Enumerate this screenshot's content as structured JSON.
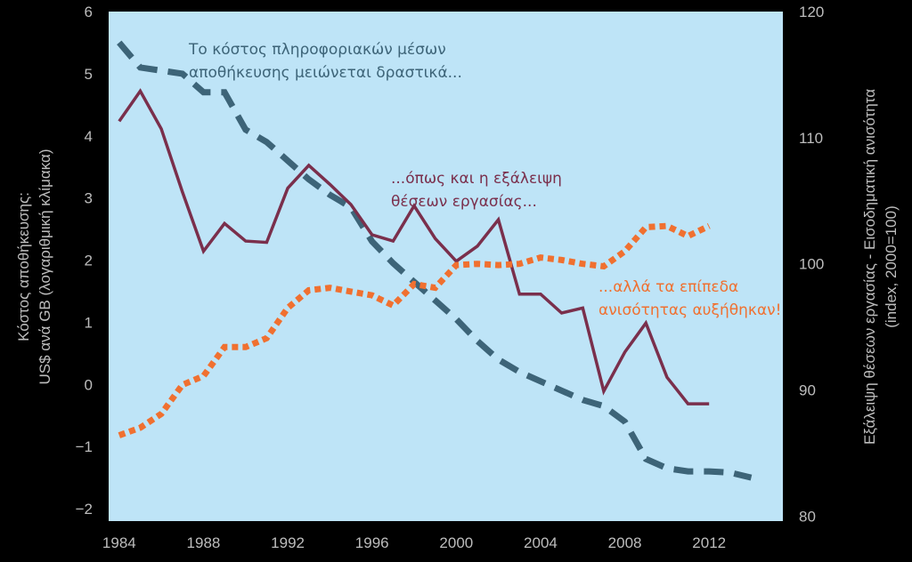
{
  "chart_data": {
    "type": "line",
    "x_ticks": [
      "1984",
      "1988",
      "1992",
      "1996",
      "2000",
      "2004",
      "2008",
      "2012"
    ],
    "xlim": [
      1983.5,
      2015.5
    ],
    "left_axis": {
      "label_lines": [
        "Κόστος αποθήκευσης:",
        "US$ ανά GB (λογαριθμική κλίμακα)"
      ],
      "ylim": [
        -2.2,
        6
      ],
      "ticks": [
        "6",
        "5",
        "4",
        "3",
        "2",
        "1",
        "0",
        "−1",
        "−2"
      ],
      "tick_values": [
        6,
        5,
        4,
        3,
        2,
        1,
        0,
        -1,
        -2
      ]
    },
    "right_axis": {
      "label_lines": [
        "Εξάλειψη θέσεων εργασίας - Εισοδηματική ανισότητα",
        "(index, 2000=100)"
      ],
      "ylim": [
        79.6,
        120
      ],
      "ticks": [
        "120",
        "110",
        "100",
        "90",
        "80"
      ],
      "tick_values": [
        120,
        110,
        100,
        90,
        80
      ]
    },
    "series": [
      {
        "axis": "left",
        "color": "#3d6478",
        "style": "dashed",
        "x": [
          1984,
          1985,
          1986,
          1987,
          1988,
          1989,
          1990,
          1991,
          1992,
          1993,
          1994,
          1995,
          1996,
          1997,
          1998,
          1999,
          2000,
          2001,
          2002,
          2003,
          2004,
          2005,
          2006,
          2007,
          2008,
          2009,
          2010,
          2011,
          2012,
          2013,
          2014
        ],
        "values": [
          5.5,
          5.1,
          5.05,
          5.0,
          4.7,
          4.7,
          4.1,
          3.9,
          3.6,
          3.3,
          3.05,
          2.85,
          2.3,
          1.95,
          1.65,
          1.35,
          1.05,
          0.7,
          0.4,
          0.2,
          0.05,
          -0.1,
          -0.25,
          -0.35,
          -0.6,
          -1.2,
          -1.35,
          -1.4,
          -1.4,
          -1.42,
          -1.5
        ]
      },
      {
        "axis": "right",
        "color": "#7a2f4c",
        "style": "solid",
        "x": [
          1984,
          1985,
          1986,
          1987,
          1988,
          1989,
          1990,
          1991,
          1992,
          1993,
          1994,
          1995,
          1996,
          1997,
          1998,
          1999,
          2000,
          2001,
          2002,
          2003,
          2004,
          2005,
          2006,
          2007,
          2008,
          2009,
          2010,
          2011,
          2012
        ],
        "values": [
          111.3,
          113.7,
          110.7,
          105.7,
          101.0,
          103.2,
          101.8,
          101.7,
          106.0,
          107.8,
          106.3,
          104.7,
          102.3,
          101.8,
          104.6,
          102.0,
          100.2,
          101.4,
          103.5,
          97.6,
          97.6,
          96.1,
          96.5,
          89.9,
          93.0,
          95.3,
          91.0,
          88.9,
          88.9
        ]
      },
      {
        "axis": "right",
        "color": "#f07030",
        "style": "dotted",
        "x": [
          1984,
          1985,
          1986,
          1987,
          1988,
          1989,
          1990,
          1991,
          1992,
          1993,
          1994,
          1995,
          1996,
          1997,
          1998,
          1999,
          2000,
          2001,
          2002,
          2003,
          2004,
          2005,
          2006,
          2007,
          2008,
          2009,
          2010,
          2011,
          2012
        ],
        "values": [
          86.4,
          87.0,
          88.1,
          90.4,
          91.1,
          93.4,
          93.4,
          94.1,
          96.5,
          97.9,
          98.1,
          97.8,
          97.5,
          96.7,
          98.4,
          98.1,
          99.9,
          100.0,
          99.9,
          100.0,
          100.5,
          100.3,
          100.0,
          99.8,
          101.0,
          102.9,
          103.0,
          102.2,
          103.0
        ]
      }
    ],
    "annotations": [
      {
        "lines": [
          "Το κόστος πληροφοριακών μέσων",
          "αποθήκευσης μειώνεται δραστικά..."
        ],
        "color": "#3d6478"
      },
      {
        "lines": [
          "...όπως και η εξάλειψη",
          "θέσεων εργασίας..."
        ],
        "color": "#7a2f4c"
      },
      {
        "lines": [
          "...αλλά τα επίπεδα",
          "ανισότητας αυξήθηκαν!"
        ],
        "color": "#f07030"
      }
    ],
    "plot_background": "#bee4f7"
  }
}
